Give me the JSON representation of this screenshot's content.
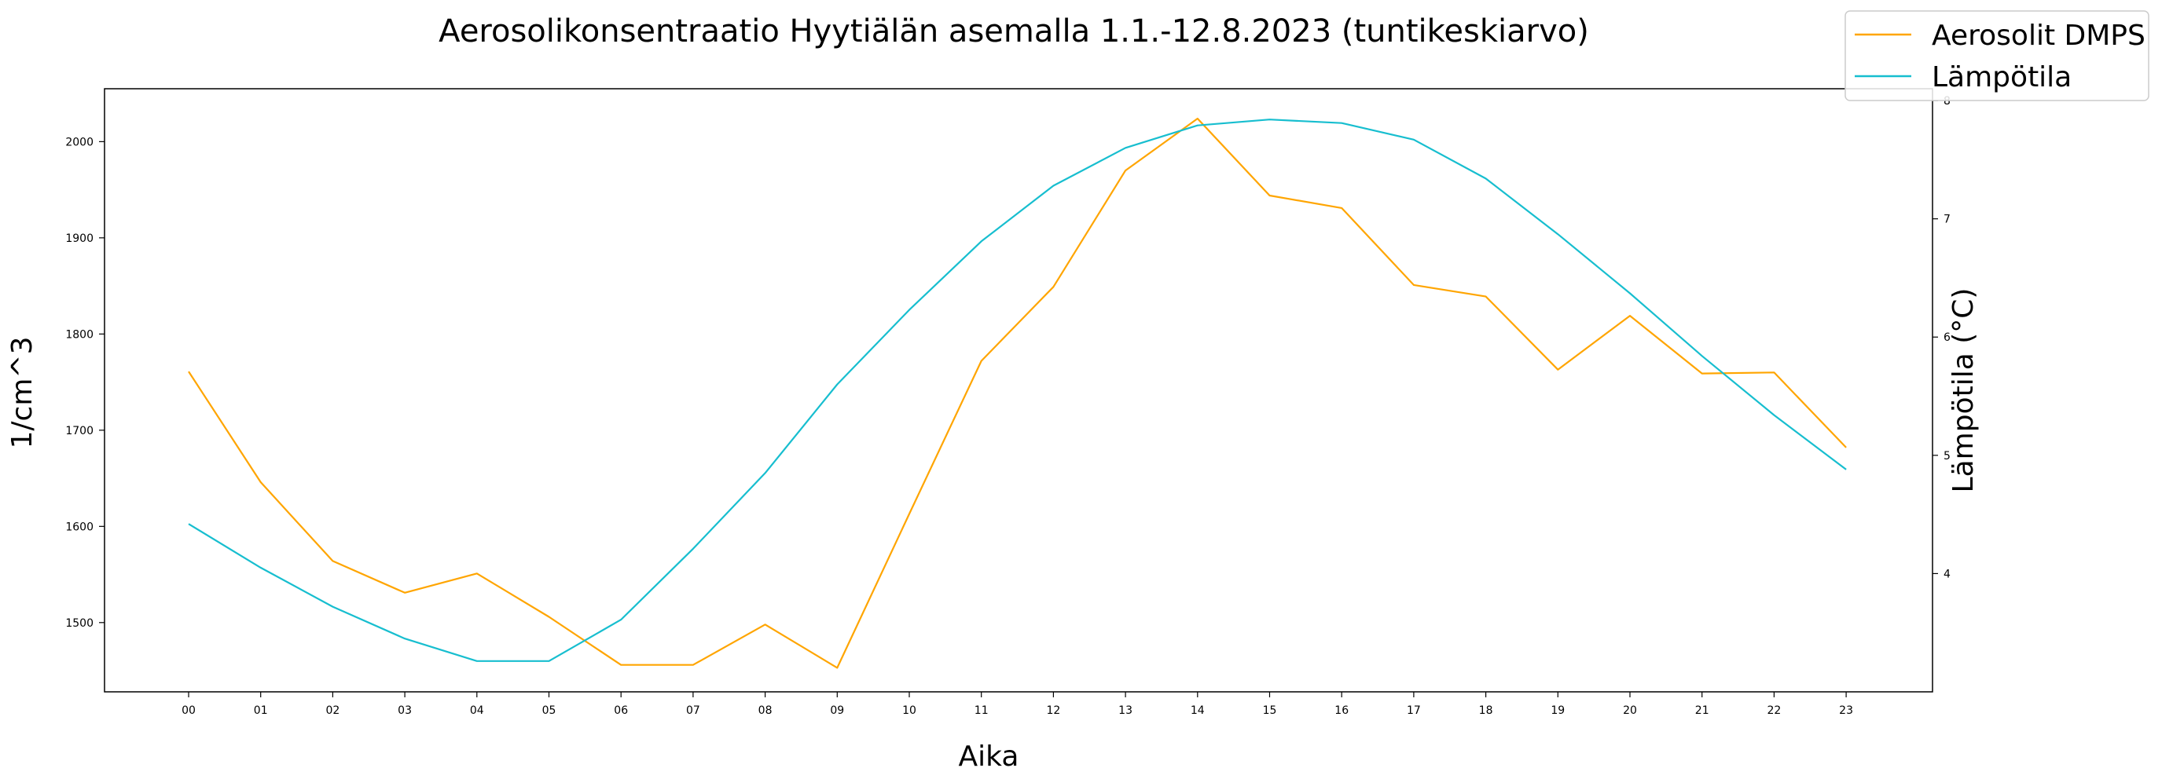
{
  "chart_data": {
    "type": "line",
    "title": "Aerosolikonsentraatio Hyytiälän asemalla 1.1.-12.8.2023 (tuntikeskiarvo)",
    "xlabel": "Aika",
    "ylabel_left": "1/cm^3",
    "ylabel_right": "Lämpötila (°C)",
    "categories": [
      "00",
      "01",
      "02",
      "03",
      "04",
      "05",
      "06",
      "07",
      "08",
      "09",
      "10",
      "11",
      "12",
      "13",
      "14",
      "15",
      "16",
      "17",
      "18",
      "19",
      "20",
      "21",
      "22",
      "23"
    ],
    "left_axis": {
      "ylim": [
        1428,
        2055
      ],
      "ticks": [
        "1500",
        "1600",
        "1700",
        "1800",
        "1900",
        "2000"
      ]
    },
    "right_axis": {
      "ylim": [
        3.0,
        8.1
      ],
      "ticks": [
        "4",
        "5",
        "6",
        "7",
        "8"
      ]
    },
    "legend_position": "top-right",
    "grid": false,
    "series": [
      {
        "name": "Aerosolit DMPS",
        "axis": "left",
        "color": "#FFA500",
        "values": [
          1761,
          1646,
          1564,
          1531,
          1551,
          1506,
          1456,
          1456,
          1498,
          1453,
          1613,
          1772,
          1849,
          1970,
          2024,
          1944,
          1931,
          1851,
          1839,
          1763,
          1819,
          1759,
          1760,
          1682
        ]
      },
      {
        "name": "Lämpötila",
        "axis": "right",
        "color": "#17BECF",
        "values": [
          4.42,
          4.05,
          3.72,
          3.45,
          3.26,
          3.26,
          3.61,
          4.21,
          4.85,
          5.6,
          6.23,
          6.81,
          7.28,
          7.6,
          7.79,
          7.84,
          7.81,
          7.67,
          7.34,
          6.87,
          6.37,
          5.84,
          5.34,
          4.88
        ]
      }
    ]
  }
}
